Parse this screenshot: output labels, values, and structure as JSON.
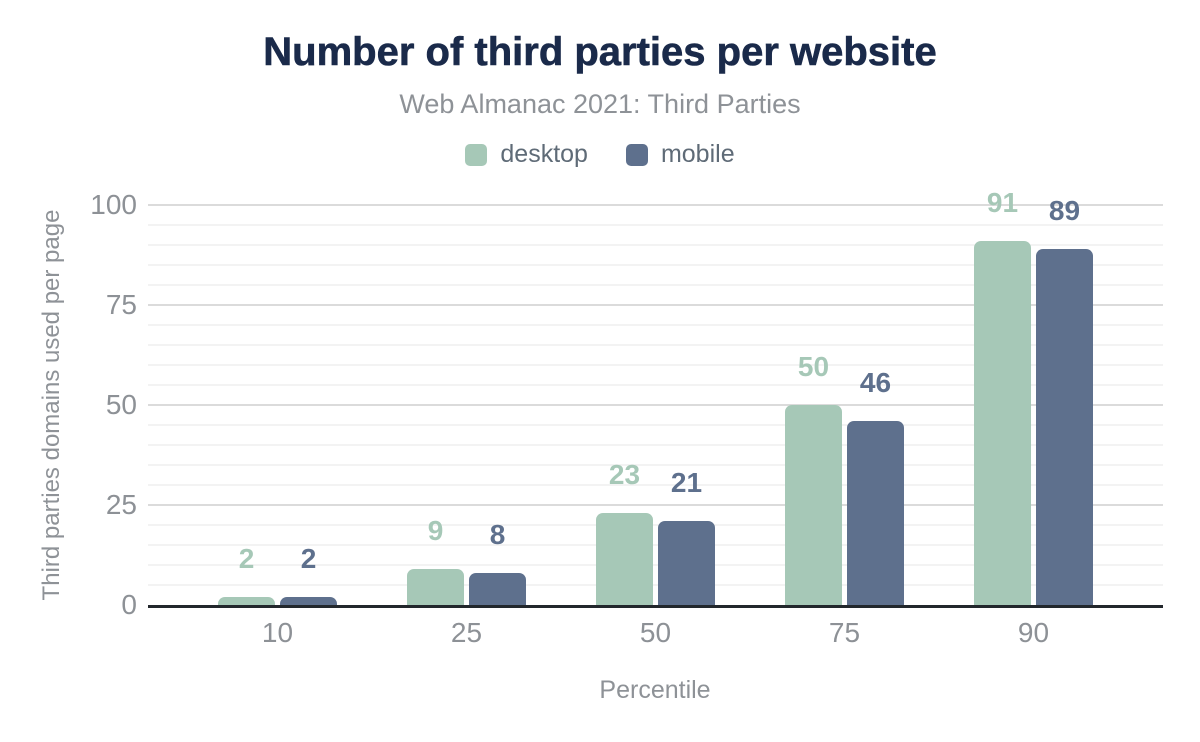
{
  "chart_data": {
    "type": "bar",
    "title": "Number of third parties per website",
    "subtitle": "Web Almanac 2021: Third Parties",
    "categories": [
      "10",
      "25",
      "50",
      "75",
      "90"
    ],
    "series": [
      {
        "name": "desktop",
        "color": "#a6c8b7",
        "values": [
          2,
          9,
          23,
          50,
          91
        ]
      },
      {
        "name": "mobile",
        "color": "#5e708d",
        "values": [
          2,
          8,
          21,
          46,
          89
        ]
      }
    ],
    "xlabel": "Percentile",
    "ylabel": "Third parties domains used per page",
    "ylim": [
      0,
      100
    ],
    "yticks": [
      0,
      25,
      50,
      75,
      100
    ],
    "minor_grid_step": 5,
    "grid": "on",
    "legend_position": "top",
    "data_labels": true
  },
  "palette": {
    "background": "#ffffff",
    "title_text": "#1a2a4a",
    "subtitle_text": "#8e9297",
    "legend_text": "#5f6b77",
    "axis_tick_text": "#8d9196",
    "axis_title_text": "#8e9297",
    "gridline_major": "#dbdbdb",
    "gridline_minor": "#f3f3f3",
    "baseline": "#22272c"
  }
}
